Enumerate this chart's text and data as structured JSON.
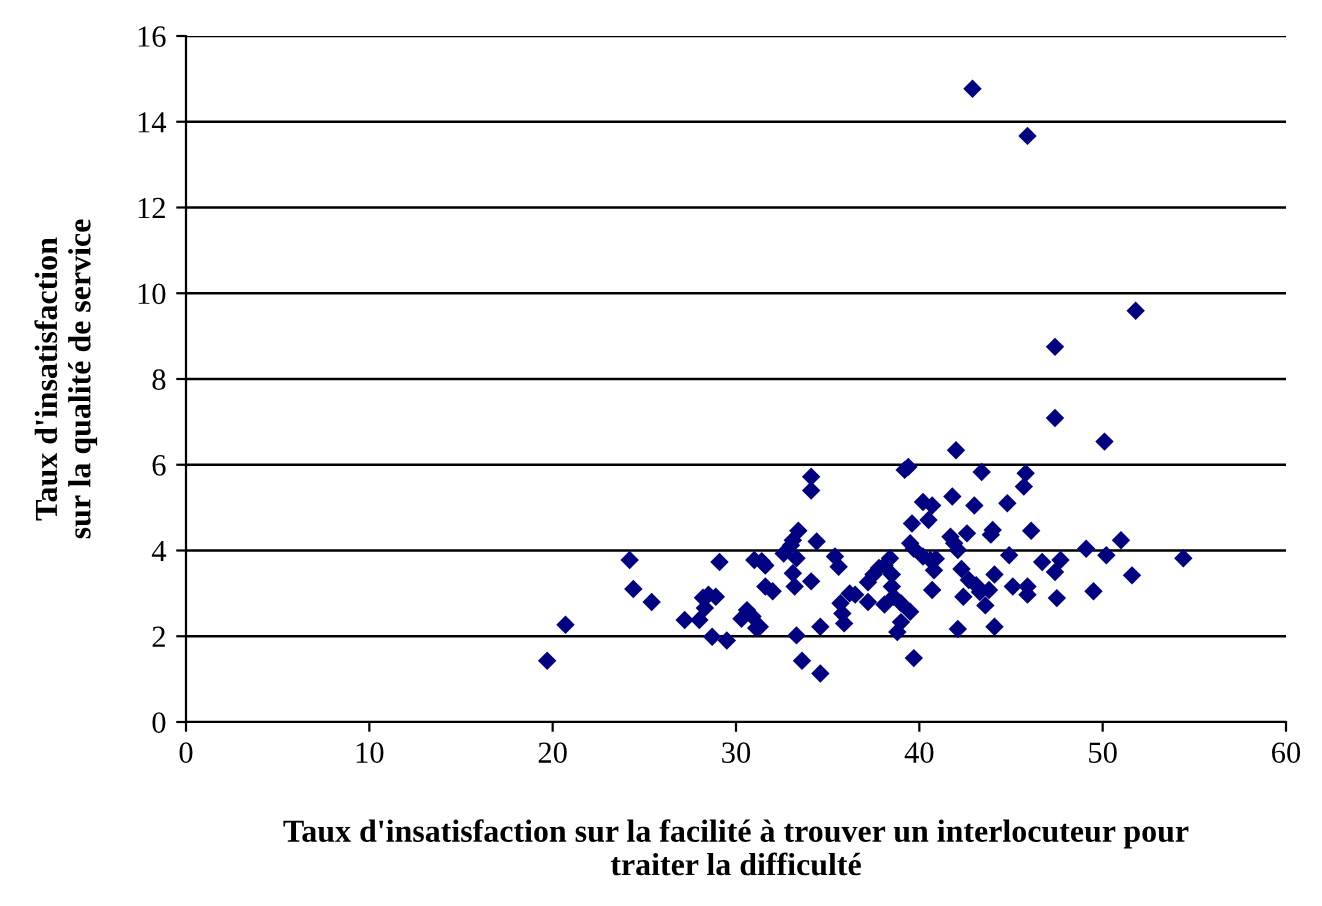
{
  "chart_data": {
    "type": "scatter",
    "xlabel": "Taux d'insatisfaction sur la facilité à trouver un interlocuteur pour\ntraiter la difficulté",
    "ylabel": "Taux d'insatisfaction\nsur la qualité de service",
    "xlim": [
      0,
      60
    ],
    "xticks": [
      0,
      10,
      20,
      30,
      40,
      50,
      60
    ],
    "ylim": [
      0,
      16
    ],
    "yticks": [
      0,
      2,
      4,
      6,
      8,
      10,
      12,
      14,
      16
    ],
    "grid": "y",
    "marker": "diamond",
    "series": [
      {
        "color": "#000080",
        "x": [
          19.7,
          20.7,
          24.2,
          24.4,
          25.4,
          27.2,
          28.0,
          28.2,
          28.3,
          28.5,
          28.9,
          28.7,
          29.5,
          29.1,
          30.3,
          30.6,
          30.9,
          31.1,
          31.3,
          31.0,
          31.4,
          31.6,
          31.6,
          32.0,
          32.6,
          33.0,
          33.1,
          33.4,
          33.3,
          33.1,
          33.2,
          33.3,
          33.6,
          34.1,
          34.1,
          34.4,
          34.1,
          34.6,
          34.6,
          35.4,
          35.6,
          35.7,
          35.8,
          35.9,
          36.2,
          36.5,
          37.2,
          37.2,
          37.5,
          37.8,
          38.1,
          38.4,
          38.5,
          38.5,
          38.6,
          38.1,
          39.0,
          38.8,
          39.0,
          39.5,
          39.7,
          39.2,
          39.4,
          39.6,
          39.5,
          39.7,
          40.2,
          40.6,
          40.9,
          40.8,
          40.7,
          40.2,
          40.7,
          40.5,
          41.8,
          42.0,
          41.7,
          41.9,
          42.1,
          42.3,
          42.4,
          42.1,
          42.6,
          43.0,
          43.4,
          42.7,
          43.1,
          43.3,
          43.6,
          43.8,
          44.1,
          44.1,
          43.9,
          44.0,
          44.8,
          44.9,
          45.1,
          45.8,
          45.7,
          47.4,
          50.1,
          46.1,
          46.7,
          47.7,
          47.4,
          45.9,
          45.9,
          47.5,
          49.1,
          50.2,
          51.0,
          51.6,
          49.5,
          54.4,
          42.9,
          45.9,
          51.8,
          47.4
        ],
        "values": [
          1.43,
          2.27,
          3.78,
          3.1,
          2.8,
          2.38,
          2.38,
          2.9,
          2.66,
          2.97,
          2.92,
          1.99,
          1.9,
          3.73,
          2.41,
          2.61,
          2.46,
          2.19,
          2.22,
          3.78,
          3.75,
          3.65,
          3.16,
          3.05,
          3.93,
          4.12,
          4.24,
          4.46,
          3.82,
          3.47,
          3.16,
          2.02,
          1.43,
          5.72,
          5.4,
          4.21,
          3.28,
          2.22,
          1.13,
          3.86,
          3.62,
          2.77,
          2.53,
          2.3,
          3.0,
          2.97,
          2.8,
          3.26,
          3.44,
          3.59,
          3.65,
          3.82,
          3.44,
          3.16,
          2.92,
          2.74,
          2.77,
          2.1,
          2.33,
          2.57,
          1.49,
          5.88,
          5.95,
          4.63,
          4.17,
          4.04,
          3.86,
          3.78,
          3.81,
          3.54,
          3.08,
          5.13,
          5.05,
          4.71,
          5.26,
          6.34,
          4.32,
          4.17,
          4.01,
          3.57,
          2.92,
          2.17,
          4.4,
          5.05,
          5.83,
          3.31,
          3.19,
          3.03,
          2.72,
          3.08,
          3.44,
          2.22,
          4.37,
          4.48,
          5.1,
          3.89,
          3.16,
          5.8,
          5.49,
          7.09,
          6.54,
          4.46,
          3.73,
          3.78,
          3.5,
          3.16,
          2.97,
          2.89,
          4.04,
          3.89,
          4.24,
          3.42,
          3.05,
          3.82,
          14.77,
          13.67,
          9.59,
          8.75
        ]
      }
    ]
  }
}
